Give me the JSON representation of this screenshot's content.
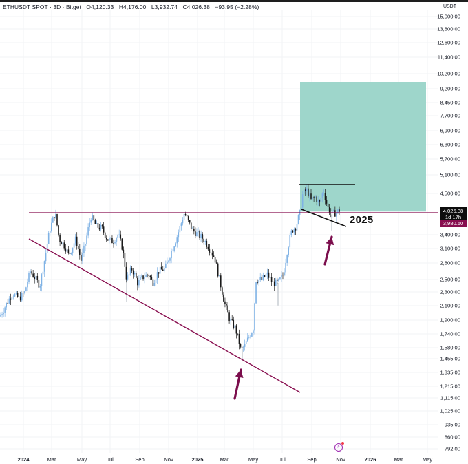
{
  "header": {
    "symbol": "ETHUSDT SPOT",
    "interval": "3D",
    "exchange": "Bitget",
    "open": "O4,120.33",
    "high": "H4,176.00",
    "low": "L3,932.74",
    "close": "C4,026.38",
    "change": "−93.95 (−2.28%)",
    "title": "ETHUSDT SPOT · 3D · Bitget"
  },
  "axis": {
    "unit": "USDT",
    "y_labels": [
      "15,000.00",
      "13,800.00",
      "12,600.00",
      "11,400.00",
      "10,200.00",
      "9,200.00",
      "8,450.00",
      "7,700.00",
      "6,900.00",
      "6,300.00",
      "5,700.00",
      "5,100.00",
      "4,500.00",
      "3,400.00",
      "3,100.00",
      "2,800.00",
      "2,500.00",
      "2,300.00",
      "2,100.00",
      "1,900.00",
      "1,740.00",
      "1,580.00",
      "1,455.00",
      "1,335.00",
      "1,215.00",
      "1,115.00",
      "1,025.00",
      "935.00",
      "860.00",
      "792.00"
    ],
    "x_labels": [
      "2024",
      "Mar",
      "May",
      "Jul",
      "Sep",
      "Nov",
      "2025",
      "Mar",
      "May",
      "Jul",
      "Sep",
      "Nov",
      "2026",
      "Mar",
      "May"
    ]
  },
  "price_tags": {
    "current_price": "4,026.38",
    "countdown": "1d 17h",
    "line_price": "3,980.50"
  },
  "annotations": {
    "label_2025": "2025"
  },
  "colors": {
    "up": "#7fb2e5",
    "down": "#1a1a1a",
    "resistance_line": "#880e4f",
    "trend_line": "#880e4f",
    "target_box": "#9ed6cb",
    "arrow": "#7b0d4c",
    "flag_lines": "#111111"
  },
  "chart_data": {
    "type": "candlestick",
    "title": "ETHUSDT SPOT · 3D · Bitget",
    "xlabel": "",
    "ylabel": "USDT",
    "y_scale": "log",
    "ylim": [
      760,
      15500
    ],
    "x_range": [
      "2023-12",
      "2026-05"
    ],
    "last_ohlc": {
      "open": 4120.33,
      "high": 4176.0,
      "low": 3932.74,
      "close": 4026.38,
      "change": -93.95,
      "change_pct": -2.28
    },
    "horizontal_level": 3980.5,
    "target_zone": {
      "from": 3980.5,
      "to": 9600,
      "x_from": "2025-08",
      "x_to": "2026-05"
    },
    "descending_trendline": {
      "from": {
        "date": "2024-02",
        "price": 3500
      },
      "to": {
        "date": "2025-06",
        "price": 1180
      }
    },
    "bull_flag": {
      "top": 4800,
      "bottom_from": 4050,
      "bottom_to": 3700,
      "period": "2025-08 to 2025-10"
    },
    "text_annotations": [
      "2025"
    ],
    "arrows": [
      {
        "at": "2025-04",
        "price": 1400,
        "direction": "up"
      },
      {
        "at": "2025-10",
        "price": 3500,
        "direction": "up"
      }
    ],
    "series_points": [
      {
        "date": "2023-12",
        "close": 2250
      },
      {
        "date": "2024-01",
        "close": 2300
      },
      {
        "date": "2024-02",
        "close": 2900
      },
      {
        "date": "2024-03",
        "close": 3900
      },
      {
        "date": "2024-04",
        "close": 3100
      },
      {
        "date": "2024-05",
        "close": 3700
      },
      {
        "date": "2024-06",
        "close": 3500
      },
      {
        "date": "2024-07",
        "close": 3200
      },
      {
        "date": "2024-08",
        "close": 2500
      },
      {
        "date": "2024-09",
        "close": 2450
      },
      {
        "date": "2024-10",
        "close": 2500
      },
      {
        "date": "2024-11",
        "close": 3300
      },
      {
        "date": "2024-12",
        "close": 3900
      },
      {
        "date": "2025-01",
        "close": 3300
      },
      {
        "date": "2025-02",
        "close": 2700
      },
      {
        "date": "2025-03",
        "close": 1900
      },
      {
        "date": "2025-04",
        "close": 1500
      },
      {
        "date": "2025-05",
        "close": 2500
      },
      {
        "date": "2025-06",
        "close": 2500
      },
      {
        "date": "2025-07",
        "close": 3700
      },
      {
        "date": "2025-08",
        "close": 4400
      },
      {
        "date": "2025-09",
        "close": 4400
      },
      {
        "date": "2025-10",
        "close": 4026
      }
    ]
  }
}
